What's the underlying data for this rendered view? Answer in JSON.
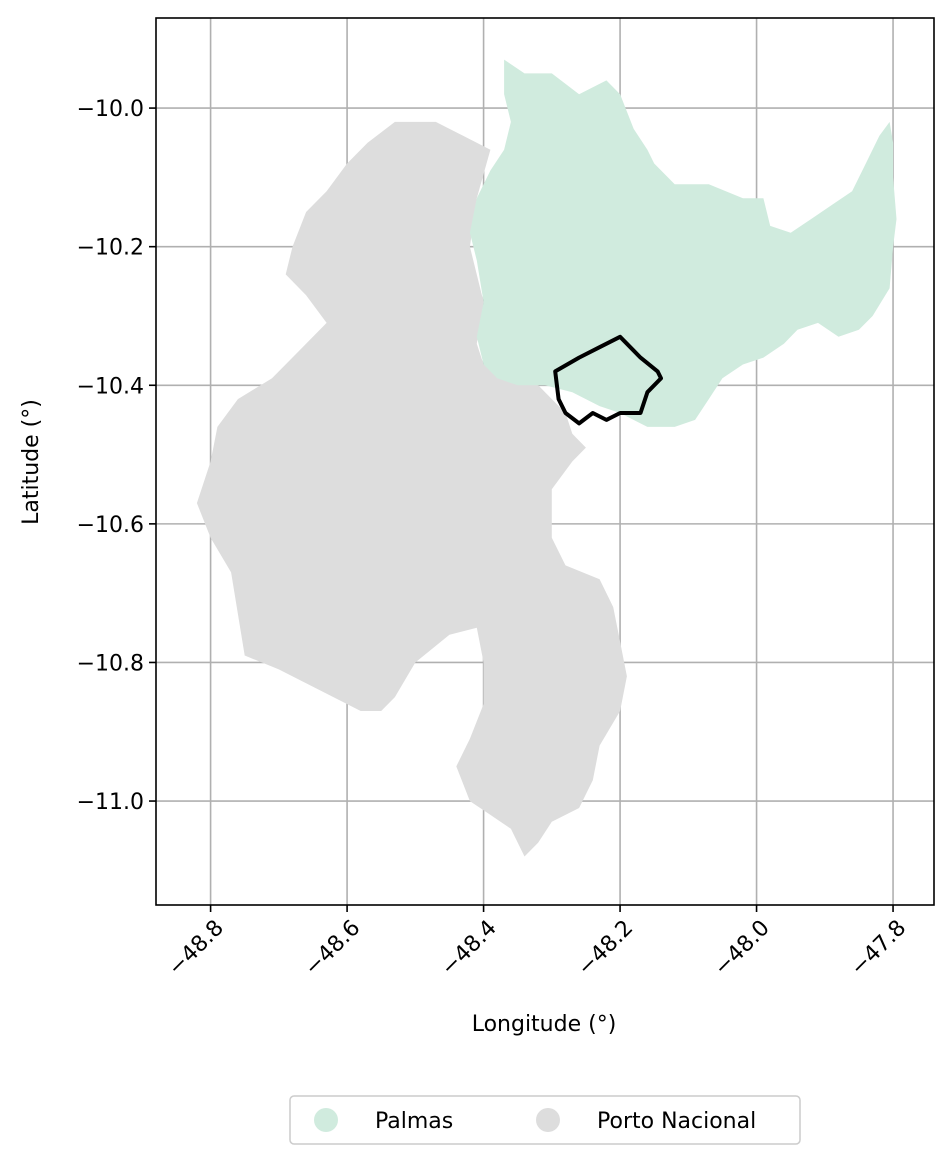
{
  "chart_data": {
    "type": "map",
    "xlabel": "Longitude (°)",
    "ylabel": "Latitude (°)",
    "xlim": [
      -48.88,
      -47.74
    ],
    "ylim": [
      -11.15,
      -9.87
    ],
    "x_ticks": [
      -48.8,
      -48.6,
      -48.4,
      -48.2,
      -48.0,
      -47.8
    ],
    "x_tick_labels": [
      "−48.8",
      "−48.6",
      "−48.4",
      "−48.2",
      "−48.0",
      "−47.8"
    ],
    "y_ticks": [
      -10.0,
      -10.2,
      -10.4,
      -10.6,
      -10.8,
      -11.0
    ],
    "y_tick_labels": [
      "−10.0",
      "−10.2",
      "−10.4",
      "−10.6",
      "−10.8",
      "−11.0"
    ],
    "grid": true,
    "legend_position": "bottom-center",
    "regions": [
      {
        "name": "Palmas",
        "color": "#d0ebde",
        "boundary": [
          [
            -48.37,
            -9.93
          ],
          [
            -48.34,
            -9.95
          ],
          [
            -48.3,
            -9.95
          ],
          [
            -48.26,
            -9.98
          ],
          [
            -48.22,
            -9.96
          ],
          [
            -48.2,
            -9.98
          ],
          [
            -48.18,
            -10.03
          ],
          [
            -48.16,
            -10.06
          ],
          [
            -48.15,
            -10.08
          ],
          [
            -48.12,
            -10.11
          ],
          [
            -48.07,
            -10.11
          ],
          [
            -48.02,
            -10.13
          ],
          [
            -47.99,
            -10.13
          ],
          [
            -47.98,
            -10.17
          ],
          [
            -47.95,
            -10.18
          ],
          [
            -47.92,
            -10.16
          ],
          [
            -47.89,
            -10.14
          ],
          [
            -47.86,
            -10.12
          ],
          [
            -47.84,
            -10.08
          ],
          [
            -47.82,
            -10.04
          ],
          [
            -47.805,
            -10.02
          ],
          [
            -47.8,
            -10.05
          ],
          [
            -47.8,
            -10.1
          ],
          [
            -47.795,
            -10.16
          ],
          [
            -47.8,
            -10.2
          ],
          [
            -47.805,
            -10.26
          ],
          [
            -47.83,
            -10.3
          ],
          [
            -47.85,
            -10.32
          ],
          [
            -47.88,
            -10.33
          ],
          [
            -47.91,
            -10.31
          ],
          [
            -47.94,
            -10.32
          ],
          [
            -47.96,
            -10.34
          ],
          [
            -47.99,
            -10.36
          ],
          [
            -48.02,
            -10.37
          ],
          [
            -48.05,
            -10.39
          ],
          [
            -48.07,
            -10.42
          ],
          [
            -48.09,
            -10.45
          ],
          [
            -48.12,
            -10.46
          ],
          [
            -48.16,
            -10.46
          ],
          [
            -48.2,
            -10.44
          ],
          [
            -48.23,
            -10.43
          ],
          [
            -48.27,
            -10.41
          ],
          [
            -48.31,
            -10.4
          ],
          [
            -48.35,
            -10.4
          ],
          [
            -48.38,
            -10.39
          ],
          [
            -48.4,
            -10.37
          ],
          [
            -48.41,
            -10.33
          ],
          [
            -48.4,
            -10.28
          ],
          [
            -48.41,
            -10.22
          ],
          [
            -48.42,
            -10.18
          ],
          [
            -48.41,
            -10.13
          ],
          [
            -48.39,
            -10.09
          ],
          [
            -48.37,
            -10.06
          ],
          [
            -48.36,
            -10.02
          ],
          [
            -48.37,
            -9.98
          ]
        ]
      },
      {
        "name": "Porto Nacional",
        "color": "#dddddd",
        "boundary": [
          [
            -48.53,
            -10.02
          ],
          [
            -48.47,
            -10.02
          ],
          [
            -48.43,
            -10.04
          ],
          [
            -48.39,
            -10.06
          ],
          [
            -48.41,
            -10.13
          ],
          [
            -48.42,
            -10.2
          ],
          [
            -48.4,
            -10.28
          ],
          [
            -48.41,
            -10.34
          ],
          [
            -48.4,
            -10.37
          ],
          [
            -48.37,
            -10.39
          ],
          [
            -48.32,
            -10.4
          ],
          [
            -48.28,
            -10.44
          ],
          [
            -48.27,
            -10.47
          ],
          [
            -48.25,
            -10.49
          ],
          [
            -48.27,
            -10.51
          ],
          [
            -48.3,
            -10.55
          ],
          [
            -48.3,
            -10.62
          ],
          [
            -48.28,
            -10.66
          ],
          [
            -48.23,
            -10.68
          ],
          [
            -48.21,
            -10.72
          ],
          [
            -48.2,
            -10.77
          ],
          [
            -48.19,
            -10.82
          ],
          [
            -48.2,
            -10.87
          ],
          [
            -48.23,
            -10.92
          ],
          [
            -48.24,
            -10.97
          ],
          [
            -48.26,
            -11.01
          ],
          [
            -48.3,
            -11.03
          ],
          [
            -48.32,
            -11.06
          ],
          [
            -48.34,
            -11.08
          ],
          [
            -48.36,
            -11.04
          ],
          [
            -48.39,
            -11.02
          ],
          [
            -48.42,
            -11.0
          ],
          [
            -48.44,
            -10.95
          ],
          [
            -48.42,
            -10.91
          ],
          [
            -48.4,
            -10.86
          ],
          [
            -48.4,
            -10.8
          ],
          [
            -48.41,
            -10.75
          ],
          [
            -48.45,
            -10.76
          ],
          [
            -48.5,
            -10.8
          ],
          [
            -48.53,
            -10.85
          ],
          [
            -48.55,
            -10.87
          ],
          [
            -48.58,
            -10.87
          ],
          [
            -48.62,
            -10.85
          ],
          [
            -48.66,
            -10.83
          ],
          [
            -48.7,
            -10.81
          ],
          [
            -48.75,
            -10.79
          ],
          [
            -48.76,
            -10.73
          ],
          [
            -48.77,
            -10.67
          ],
          [
            -48.8,
            -10.62
          ],
          [
            -48.82,
            -10.57
          ],
          [
            -48.8,
            -10.51
          ],
          [
            -48.79,
            -10.46
          ],
          [
            -48.76,
            -10.42
          ],
          [
            -48.71,
            -10.39
          ],
          [
            -48.67,
            -10.35
          ],
          [
            -48.63,
            -10.31
          ],
          [
            -48.66,
            -10.27
          ],
          [
            -48.69,
            -10.24
          ],
          [
            -48.68,
            -10.2
          ],
          [
            -48.66,
            -10.15
          ],
          [
            -48.63,
            -10.12
          ],
          [
            -48.6,
            -10.08
          ],
          [
            -48.57,
            -10.05
          ]
        ]
      }
    ],
    "outline": {
      "color": "#000000",
      "boundary": [
        [
          -48.2,
          -10.33
        ],
        [
          -48.17,
          -10.36
        ],
        [
          -48.145,
          -10.38
        ],
        [
          -48.14,
          -10.39
        ],
        [
          -48.16,
          -10.41
        ],
        [
          -48.17,
          -10.44
        ],
        [
          -48.2,
          -10.44
        ],
        [
          -48.21,
          -10.445
        ],
        [
          -48.22,
          -10.45
        ],
        [
          -48.24,
          -10.44
        ],
        [
          -48.26,
          -10.455
        ],
        [
          -48.28,
          -10.44
        ],
        [
          -48.29,
          -10.42
        ],
        [
          -48.295,
          -10.38
        ],
        [
          -48.26,
          -10.36
        ],
        [
          -48.23,
          -10.345
        ]
      ]
    }
  }
}
